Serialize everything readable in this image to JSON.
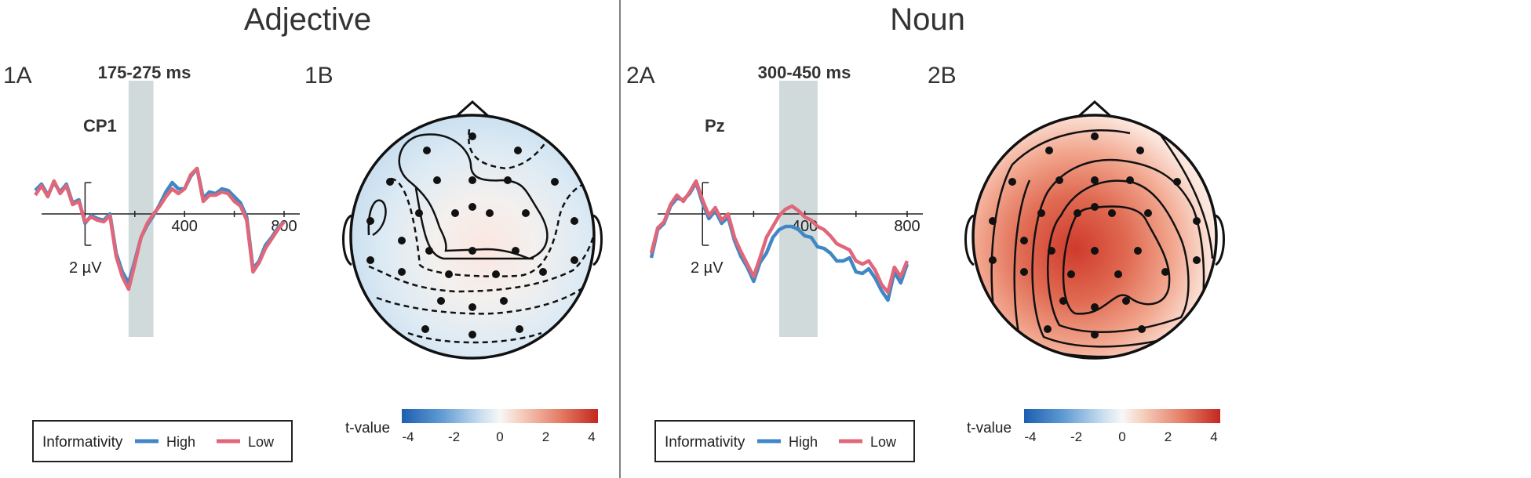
{
  "panels": [
    {
      "section_title": "Adjective",
      "erp_label": "1A",
      "topo_label": "1B",
      "window_label": "175-275 ms",
      "electrode": "CP1",
      "scale_label": "2 µV",
      "legend": {
        "title": "Informativity",
        "high": "High",
        "low": "Low"
      },
      "colorbar": {
        "label": "t-value",
        "ticks": [
          "-4",
          "-2",
          "0",
          "2",
          "4"
        ]
      }
    },
    {
      "section_title": "Noun",
      "erp_label": "2A",
      "topo_label": "2B",
      "window_label": "300-450 ms",
      "electrode": "Pz",
      "scale_label": "2 µV",
      "legend": {
        "title": "Informativity",
        "high": "High",
        "low": "Low"
      },
      "colorbar": {
        "label": "t-value",
        "ticks": [
          "-4",
          "-2",
          "0",
          "2",
          "4"
        ]
      }
    }
  ],
  "chart_data": [
    {
      "type": "line",
      "electrode": "CP1",
      "xlabel": "",
      "ylabel": "",
      "x_ticks": [
        400,
        800
      ],
      "xlim": [
        -200,
        800
      ],
      "ylim": [
        -2,
        6
      ],
      "y_inverted": true,
      "highlight_window": [
        175,
        275
      ],
      "x": [
        -200,
        -175,
        -150,
        -125,
        -100,
        -75,
        -50,
        -25,
        0,
        25,
        50,
        75,
        100,
        125,
        150,
        175,
        200,
        225,
        250,
        275,
        300,
        325,
        350,
        375,
        400,
        425,
        450,
        475,
        500,
        525,
        550,
        575,
        600,
        625,
        650,
        675,
        700,
        725,
        750,
        775,
        800
      ],
      "series": [
        {
          "name": "High",
          "color": "#3f88c5",
          "values": [
            -1.5,
            -1.9,
            -1.2,
            -2.0,
            -1.4,
            -1.9,
            -0.7,
            -0.9,
            0.6,
            0.1,
            0.3,
            0.4,
            0.0,
            2.5,
            3.7,
            4.4,
            3.0,
            1.5,
            0.7,
            0.1,
            -0.6,
            -1.4,
            -2.0,
            -1.6,
            -1.6,
            -2.4,
            -2.9,
            -1.0,
            -1.4,
            -1.3,
            -1.6,
            -1.5,
            -1.1,
            -0.7,
            0.2,
            3.5,
            3.0,
            2.0,
            1.5,
            0.9,
            0.5
          ]
        },
        {
          "name": "Low",
          "color": "#e0667a",
          "values": [
            -1.2,
            -1.8,
            -1.1,
            -2.1,
            -1.3,
            -1.8,
            -0.6,
            -0.8,
            0.5,
            0.2,
            0.4,
            0.5,
            0.1,
            2.7,
            4.0,
            4.8,
            3.2,
            1.5,
            0.6,
            0.0,
            -0.5,
            -1.1,
            -1.6,
            -1.3,
            -1.6,
            -2.5,
            -2.9,
            -0.8,
            -1.2,
            -1.2,
            -1.4,
            -1.3,
            -0.8,
            -0.5,
            0.4,
            3.7,
            3.1,
            2.2,
            1.6,
            1.0,
            0.5
          ]
        }
      ]
    },
    {
      "type": "heatmap",
      "title": "",
      "colorbar_range": [
        -4,
        4
      ],
      "colorbar_label": "t-value",
      "colormap": "blue-white-red",
      "pattern": "weak negative values around the periphery, slight positive values at central-parietal sites"
    },
    {
      "type": "line",
      "electrode": "Pz",
      "xlabel": "",
      "ylabel": "",
      "x_ticks": [
        400,
        800
      ],
      "xlim": [
        -200,
        800
      ],
      "ylim": [
        -2,
        6
      ],
      "y_inverted": true,
      "highlight_window": [
        300,
        450
      ],
      "x": [
        -200,
        -175,
        -150,
        -125,
        -100,
        -75,
        -50,
        -25,
        0,
        25,
        50,
        75,
        100,
        125,
        150,
        175,
        200,
        225,
        250,
        275,
        300,
        325,
        350,
        375,
        400,
        425,
        450,
        475,
        500,
        525,
        550,
        575,
        600,
        625,
        650,
        675,
        700,
        725,
        750,
        775,
        800
      ],
      "series": [
        {
          "name": "High",
          "color": "#3f88c5",
          "values": [
            2.8,
            1.0,
            0.6,
            -0.5,
            -1.0,
            -0.9,
            -1.3,
            -2.0,
            -0.7,
            0.3,
            -0.2,
            0.6,
            0.2,
            1.7,
            2.7,
            3.4,
            4.3,
            3.1,
            2.5,
            1.5,
            1.0,
            0.8,
            0.8,
            1.0,
            1.4,
            1.5,
            2.1,
            2.2,
            2.5,
            3.0,
            3.0,
            2.8,
            3.7,
            3.8,
            3.5,
            4.1,
            4.9,
            5.5,
            3.7,
            4.4,
            3.2
          ]
        },
        {
          "name": "Low",
          "color": "#e0667a",
          "values": [
            2.5,
            0.9,
            0.5,
            -0.6,
            -1.2,
            -0.8,
            -1.4,
            -2.1,
            -0.9,
            0.1,
            -0.4,
            0.4,
            0.0,
            1.5,
            2.4,
            3.2,
            4.0,
            2.8,
            1.5,
            0.8,
            0.1,
            -0.3,
            -0.5,
            -0.2,
            0.2,
            0.4,
            0.8,
            1.0,
            1.4,
            1.9,
            2.1,
            2.3,
            3.0,
            3.2,
            3.0,
            3.6,
            4.5,
            5.0,
            3.4,
            4.0,
            3.0
          ]
        }
      ]
    },
    {
      "type": "heatmap",
      "title": "",
      "colorbar_range": [
        -4,
        4
      ],
      "colorbar_label": "t-value",
      "colormap": "blue-white-red",
      "pattern": "strong positive values over central-parietal sites decreasing toward the edges"
    }
  ]
}
